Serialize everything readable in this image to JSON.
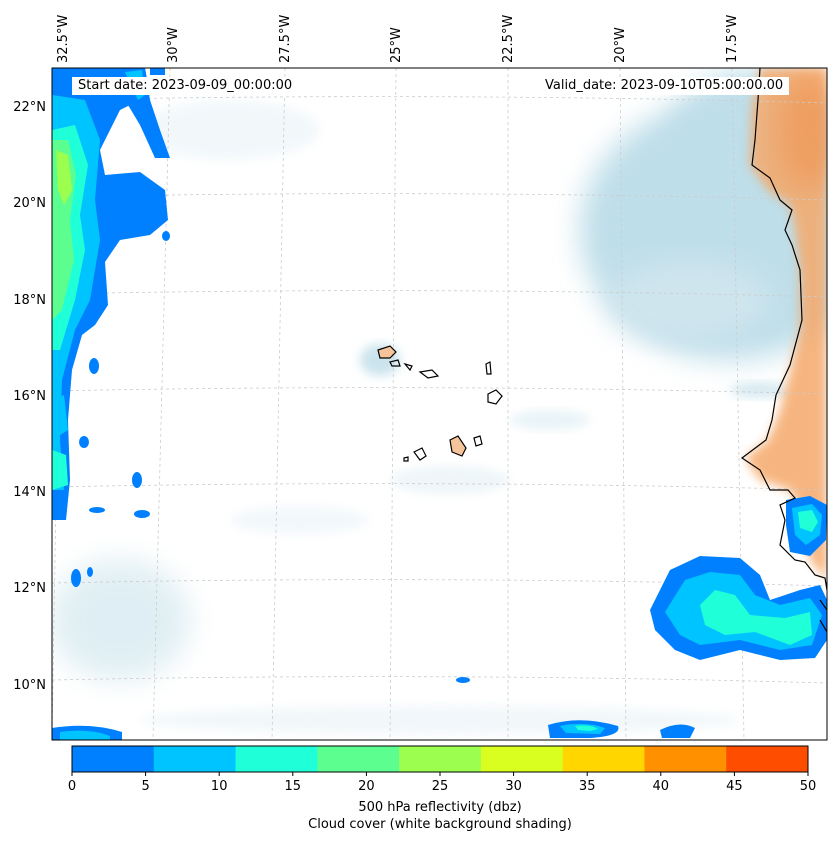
{
  "annotations": {
    "start_date": "Start date: 2023-09-09_00:00:00",
    "valid_date": "Valid_date: 2023-09-10T05:00:00.00"
  },
  "axes": {
    "lon_ticks": [
      "32.5°W",
      "30°W",
      "27.5°W",
      "25°W",
      "22.5°W",
      "20°W",
      "17.5°W"
    ],
    "lat_ticks": [
      "22°N",
      "20°N",
      "18°N",
      "16°N",
      "14°N",
      "12°N",
      "10°N"
    ]
  },
  "colorbar": {
    "ticks": [
      "0",
      "5",
      "10",
      "15",
      "20",
      "25",
      "30",
      "35",
      "40",
      "45",
      "50"
    ],
    "colors": [
      "#0080ff",
      "#00c4ff",
      "#1fffd8",
      "#5cff8f",
      "#9cff4f",
      "#d8ff1f",
      "#ffd600",
      "#ff9100",
      "#ff4d00"
    ],
    "label_line1": "500 hPa reflectivity (dbz)",
    "label_line2": "Cloud cover (white background shading)"
  },
  "colors": {
    "cloud": "#a9d3e2",
    "land": "#f5a96a",
    "coastline": "#000000",
    "grid": "#cccccc"
  }
}
